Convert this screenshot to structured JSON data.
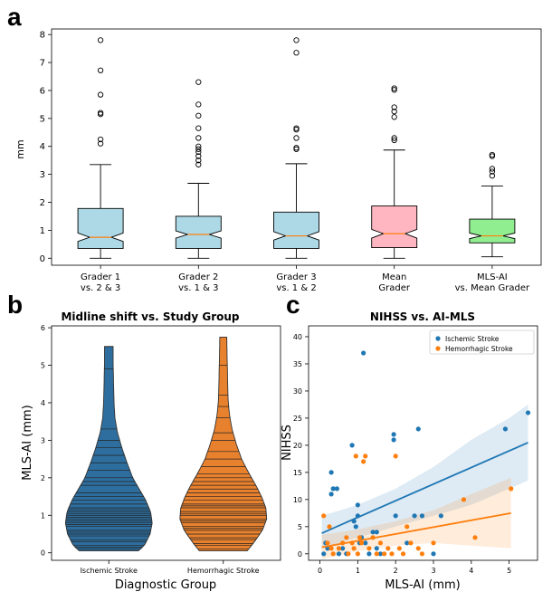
{
  "panels": {
    "a": "a",
    "b": "b",
    "c": "c"
  },
  "colors": {
    "box_blue": "#add8e6",
    "box_pink": "#ffb6c1",
    "box_green": "#90ee90",
    "median": "#ff7f0e",
    "ischemic": "#1f77b4",
    "hemorrhagic": "#ff7f0e",
    "violin_blue": "#2e6e9e",
    "violin_orange": "#e8812e"
  },
  "chart_data": [
    {
      "id": "a",
      "type": "box",
      "title": "",
      "ylabel": "mm",
      "xlabel": "",
      "ylim": [
        -0.25,
        8.2
      ],
      "yticks": [
        0,
        1,
        2,
        3,
        4,
        5,
        6,
        7,
        8
      ],
      "notched": true,
      "boxes": [
        {
          "label": [
            "Grader 1",
            "vs. 2 & 3"
          ],
          "color": "box_blue",
          "whislo": 0,
          "q1": 0.35,
          "med": 0.75,
          "q3": 1.78,
          "whishi": 3.35,
          "notch": [
            0.6,
            0.9
          ],
          "fliers": [
            4.1,
            4.25,
            5.15,
            5.2,
            5.85,
            6.72,
            7.8
          ]
        },
        {
          "label": [
            "Grader 2",
            "vs. 1 & 3"
          ],
          "color": "box_blue",
          "whislo": 0,
          "q1": 0.35,
          "med": 0.85,
          "q3": 1.5,
          "whishi": 2.68,
          "notch": [
            0.72,
            0.98
          ],
          "fliers": [
            3.35,
            3.5,
            3.65,
            3.8,
            3.9,
            4.0,
            4.3,
            4.65,
            5.1,
            5.5,
            6.3
          ]
        },
        {
          "label": [
            "Grader 3",
            "vs. 1 & 2"
          ],
          "color": "box_blue",
          "whislo": 0,
          "q1": 0.35,
          "med": 0.8,
          "q3": 1.65,
          "whishi": 3.38,
          "notch": [
            0.65,
            0.95
          ],
          "fliers": [
            3.9,
            3.95,
            4.3,
            4.6,
            4.65,
            7.35,
            7.8
          ]
        },
        {
          "label": [
            "Mean",
            "Grader"
          ],
          "color": "box_pink",
          "whislo": 0,
          "q1": 0.38,
          "med": 0.88,
          "q3": 1.87,
          "whishi": 3.87,
          "notch": [
            0.72,
            1.03
          ],
          "fliers": [
            4.22,
            4.3,
            5.05,
            5.25,
            5.4,
            6.02,
            6.08
          ]
        },
        {
          "label": [
            "MLS-AI",
            "vs. Mean Grader"
          ],
          "color": "box_green",
          "whislo": 0.05,
          "q1": 0.55,
          "med": 0.8,
          "q3": 1.4,
          "whishi": 2.58,
          "notch": [
            0.7,
            0.9
          ],
          "fliers": [
            2.95,
            3.1,
            3.2,
            3.65,
            3.7
          ]
        }
      ]
    },
    {
      "id": "b",
      "type": "violin",
      "title": "Midline shift vs. Study Group",
      "xlabel": "Diagnostic Group",
      "ylabel": "MLS-AI (mm)",
      "ylim": [
        -0.2,
        6.05
      ],
      "yticks": [
        0,
        1,
        2,
        3,
        4,
        5,
        6
      ],
      "categories": [
        "Ischemic Stroke",
        "Hemorrhagic Stroke"
      ],
      "violins": [
        {
          "name": "Ischemic Stroke",
          "color": "violin_blue",
          "min": 0.05,
          "max": 5.5,
          "density": [
            [
              0.05,
              0.68
            ],
            [
              0.2,
              0.82
            ],
            [
              0.5,
              0.95
            ],
            [
              0.8,
              1.0
            ],
            [
              1.1,
              0.96
            ],
            [
              1.4,
              0.85
            ],
            [
              1.7,
              0.7
            ],
            [
              2.0,
              0.55
            ],
            [
              2.4,
              0.42
            ],
            [
              2.8,
              0.3
            ],
            [
              3.2,
              0.2
            ],
            [
              3.6,
              0.14
            ],
            [
              4.0,
              0.12
            ],
            [
              4.5,
              0.11
            ],
            [
              5.0,
              0.1
            ],
            [
              5.5,
              0.1
            ]
          ],
          "points": [
            0.1,
            0.15,
            0.2,
            0.3,
            0.35,
            0.45,
            0.5,
            0.55,
            0.6,
            0.7,
            0.75,
            0.8,
            0.85,
            0.9,
            0.95,
            1.0,
            1.05,
            1.1,
            1.15,
            1.2,
            1.3,
            1.4,
            1.5,
            1.6,
            1.8,
            1.9,
            2.0,
            2.2,
            2.4,
            2.6,
            2.8,
            3.0,
            3.3,
            4.9,
            5.5
          ]
        },
        {
          "name": "Hemorrhagic Stroke",
          "color": "violin_orange",
          "min": 0.05,
          "max": 5.75,
          "density": [
            [
              0.05,
              0.55
            ],
            [
              0.3,
              0.72
            ],
            [
              0.6,
              0.9
            ],
            [
              0.9,
              1.0
            ],
            [
              1.2,
              0.98
            ],
            [
              1.5,
              0.88
            ],
            [
              1.8,
              0.75
            ],
            [
              2.1,
              0.6
            ],
            [
              2.5,
              0.42
            ],
            [
              2.9,
              0.3
            ],
            [
              3.3,
              0.2
            ],
            [
              3.7,
              0.14
            ],
            [
              4.1,
              0.11
            ],
            [
              4.6,
              0.1
            ],
            [
              5.1,
              0.09
            ],
            [
              5.75,
              0.08
            ]
          ],
          "points": [
            0.1,
            0.2,
            0.25,
            0.35,
            0.4,
            0.5,
            0.6,
            0.65,
            0.7,
            0.8,
            0.85,
            0.9,
            1.0,
            1.05,
            1.1,
            1.2,
            1.25,
            1.3,
            1.4,
            1.5,
            1.6,
            1.7,
            1.8,
            1.9,
            2.0,
            2.1,
            2.3,
            2.5,
            2.7,
            3.0,
            3.2,
            3.6,
            3.9,
            4.2,
            5.0
          ]
        }
      ]
    },
    {
      "id": "c",
      "type": "scatter",
      "title": "NIHSS vs. AI-MLS",
      "xlabel": "MLS-AI (mm)",
      "ylabel": "NIHSS",
      "xlim": [
        -0.3,
        5.75
      ],
      "ylim": [
        -1.2,
        42
      ],
      "xticks": [
        0,
        1,
        2,
        3,
        4,
        5
      ],
      "yticks": [
        0,
        5,
        10,
        15,
        20,
        25,
        30,
        35,
        40
      ],
      "legend": "top-right",
      "series": [
        {
          "name": "Ischemic Stroke",
          "color": "ischemic",
          "points": [
            [
              0.1,
              0
            ],
            [
              0.15,
              2
            ],
            [
              0.2,
              1
            ],
            [
              0.3,
              15
            ],
            [
              0.3,
              11
            ],
            [
              0.35,
              12
            ],
            [
              0.45,
              12
            ],
            [
              0.5,
              0
            ],
            [
              0.6,
              1
            ],
            [
              0.7,
              0
            ],
            [
              0.85,
              20
            ],
            [
              0.9,
              6
            ],
            [
              0.95,
              5
            ],
            [
              1.0,
              9
            ],
            [
              1.0,
              7
            ],
            [
              1.05,
              2
            ],
            [
              1.1,
              3
            ],
            [
              1.15,
              37
            ],
            [
              1.2,
              2
            ],
            [
              1.3,
              0
            ],
            [
              1.4,
              4
            ],
            [
              1.5,
              4
            ],
            [
              1.5,
              1
            ],
            [
              1.6,
              0
            ],
            [
              1.95,
              22
            ],
            [
              1.95,
              21
            ],
            [
              2.0,
              7
            ],
            [
              2.3,
              2
            ],
            [
              2.5,
              7
            ],
            [
              2.6,
              23
            ],
            [
              2.7,
              7
            ],
            [
              3.0,
              0
            ],
            [
              3.2,
              7
            ],
            [
              4.9,
              23
            ],
            [
              5.5,
              26
            ]
          ],
          "fit": {
            "x": [
              0.05,
              5.5
            ],
            "y": [
              3.8,
              20.5
            ]
          },
          "ci_upper": [
            [
              0.05,
              7
            ],
            [
              1,
              9
            ],
            [
              2,
              12
            ],
            [
              3,
              16
            ],
            [
              4,
              21
            ],
            [
              5,
              25
            ],
            [
              5.5,
              27.5
            ]
          ],
          "ci_lower": [
            [
              0.05,
              1
            ],
            [
              1,
              3
            ],
            [
              2,
              5
            ],
            [
              3,
              7
            ],
            [
              4,
              9
            ],
            [
              5,
              12
            ],
            [
              5.5,
              13.5
            ]
          ]
        },
        {
          "name": "Hemorrhagic Stroke",
          "color": "hemorrhagic",
          "points": [
            [
              0.1,
              7
            ],
            [
              0.2,
              2
            ],
            [
              0.25,
              5
            ],
            [
              0.3,
              1
            ],
            [
              0.35,
              0
            ],
            [
              0.5,
              1
            ],
            [
              0.6,
              2
            ],
            [
              0.7,
              3
            ],
            [
              0.75,
              0
            ],
            [
              0.85,
              2
            ],
            [
              0.9,
              1
            ],
            [
              0.95,
              18
            ],
            [
              1.0,
              0
            ],
            [
              1.05,
              3
            ],
            [
              1.1,
              2
            ],
            [
              1.15,
              17
            ],
            [
              1.2,
              18
            ],
            [
              1.3,
              1
            ],
            [
              1.4,
              3
            ],
            [
              1.5,
              0
            ],
            [
              1.6,
              2
            ],
            [
              1.7,
              0
            ],
            [
              1.8,
              1
            ],
            [
              1.9,
              0
            ],
            [
              2.0,
              18
            ],
            [
              2.1,
              1
            ],
            [
              2.2,
              0
            ],
            [
              2.3,
              5
            ],
            [
              2.4,
              2
            ],
            [
              2.6,
              1
            ],
            [
              2.7,
              0
            ],
            [
              3.0,
              2
            ],
            [
              3.8,
              10
            ],
            [
              4.1,
              3
            ],
            [
              5.05,
              12
            ]
          ],
          "fit": {
            "x": [
              0.05,
              5.05
            ],
            "y": [
              1.2,
              7.5
            ]
          },
          "ci_upper": [
            [
              0.05,
              3.5
            ],
            [
              1,
              4.5
            ],
            [
              2,
              6
            ],
            [
              3,
              8
            ],
            [
              4,
              11
            ],
            [
              5.05,
              14
            ]
          ],
          "ci_lower": [
            [
              0.05,
              -1
            ],
            [
              1,
              0.5
            ],
            [
              2,
              1.5
            ],
            [
              3,
              2
            ],
            [
              4,
              1.5
            ],
            [
              5.05,
              1
            ]
          ]
        }
      ]
    }
  ]
}
